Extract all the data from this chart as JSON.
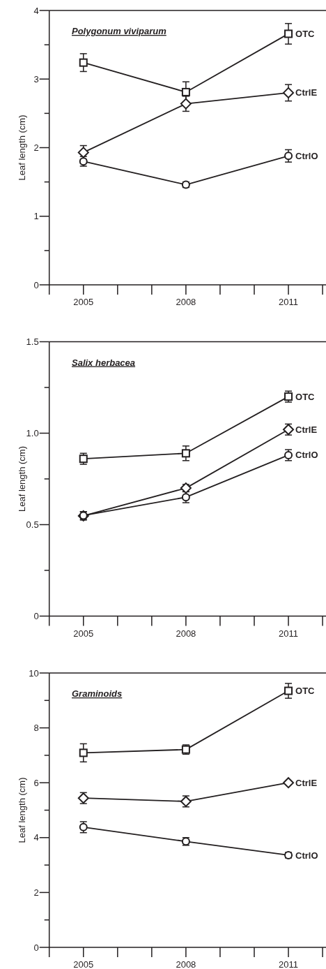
{
  "chart_data": [
    {
      "type": "line",
      "title": "Polygonum viviparum",
      "ylabel": "Leaf length (cm)",
      "x": [
        2005,
        2008,
        2011
      ],
      "xlim": [
        2004,
        2012.1
      ],
      "xticks": [
        {
          "value": 2004,
          "label": null
        },
        2005,
        {
          "value": 2006,
          "label": null
        },
        {
          "value": 2007,
          "label": null
        },
        2008,
        {
          "value": 2009,
          "label": null
        },
        {
          "value": 2010,
          "label": null
        },
        2011,
        {
          "value": 2012,
          "label": null
        }
      ],
      "ylim": [
        0,
        4
      ],
      "yticks": [
        0,
        {
          "value": 0.5,
          "label": null
        },
        1,
        {
          "value": 1.5,
          "label": null
        },
        2,
        {
          "value": 2.5,
          "label": null
        },
        3,
        {
          "value": 3.5,
          "label": null
        },
        4
      ],
      "series": [
        {
          "name": "OTC",
          "color": "#231f20",
          "marker": "square",
          "values": [
            3.24,
            2.81,
            3.66
          ],
          "errors": [
            0.13,
            0.15,
            0.15
          ]
        },
        {
          "name": "CtrlE",
          "color": "#231f20",
          "marker": "diamond",
          "values": [
            1.93,
            2.64,
            2.8
          ],
          "errors": [
            0.1,
            0.11,
            0.12
          ]
        },
        {
          "name": "CtrlO",
          "color": "#231f20",
          "marker": "circle",
          "values": [
            1.8,
            1.46,
            1.88
          ],
          "errors": [
            0.07,
            0.04,
            0.09
          ]
        }
      ]
    },
    {
      "type": "line",
      "title": "Salix herbacea",
      "ylabel": "Leaf length (cm)",
      "x": [
        2005,
        2008,
        2011
      ],
      "xlim": [
        2004,
        2012.1
      ],
      "xticks": [
        {
          "value": 2004,
          "label": null
        },
        2005,
        {
          "value": 2006,
          "label": null
        },
        {
          "value": 2007,
          "label": null
        },
        2008,
        {
          "value": 2009,
          "label": null
        },
        {
          "value": 2010,
          "label": null
        },
        2011,
        {
          "value": 2012,
          "label": null
        }
      ],
      "ylim": [
        0,
        1.5
      ],
      "yticks": [
        0,
        {
          "value": 0.25,
          "label": null
        },
        {
          "value": 0.5,
          "label": "0.5"
        },
        {
          "value": 0.75,
          "label": null
        },
        {
          "value": 1,
          "label": "1.0"
        },
        {
          "value": 1.25,
          "label": null
        },
        {
          "value": 1.5,
          "label": "1.5"
        }
      ],
      "series": [
        {
          "name": "OTC",
          "color": "#231f20",
          "marker": "square",
          "values": [
            0.86,
            0.89,
            1.2
          ],
          "errors": [
            0.03,
            0.04,
            0.03
          ]
        },
        {
          "name": "CtrlE",
          "color": "#231f20",
          "marker": "diamond",
          "values": [
            0.548,
            0.7,
            1.02
          ],
          "errors": [
            0.023,
            0.02,
            0.03
          ]
        },
        {
          "name": "CtrlO",
          "color": "#231f20",
          "marker": "circle",
          "values": [
            0.55,
            0.65,
            0.88
          ],
          "errors": [
            0.02,
            0.03,
            0.03
          ]
        }
      ]
    },
    {
      "type": "line",
      "title": "Graminoids",
      "ylabel": "Leaf length (cm)",
      "x": [
        2005,
        2008,
        2011
      ],
      "xlim": [
        2004,
        2012.1
      ],
      "xticks": [
        {
          "value": 2004,
          "label": null
        },
        2005,
        {
          "value": 2006,
          "label": null
        },
        {
          "value": 2007,
          "label": null
        },
        2008,
        {
          "value": 2009,
          "label": null
        },
        {
          "value": 2010,
          "label": null
        },
        2011,
        {
          "value": 2012,
          "label": null
        }
      ],
      "ylim": [
        0,
        10
      ],
      "yticks": [
        0,
        {
          "value": 1,
          "label": null
        },
        2,
        {
          "value": 3,
          "label": null
        },
        4,
        {
          "value": 5,
          "label": null
        },
        6,
        {
          "value": 7,
          "label": null
        },
        8,
        {
          "value": 9,
          "label": null
        },
        10
      ],
      "series": [
        {
          "name": "OTC",
          "color": "#231f20",
          "marker": "square",
          "values": [
            7.09,
            7.21,
            9.35
          ],
          "errors": [
            0.33,
            0.17,
            0.27
          ]
        },
        {
          "name": "CtrlE",
          "color": "#231f20",
          "marker": "diamond",
          "values": [
            5.44,
            5.32,
            6.0
          ],
          "errors": [
            0.2,
            0.2,
            0.05
          ]
        },
        {
          "name": "CtrlO",
          "color": "#231f20",
          "marker": "circle",
          "values": [
            4.38,
            3.86,
            3.36
          ],
          "errors": [
            0.2,
            0.14,
            0.1
          ]
        }
      ]
    }
  ]
}
